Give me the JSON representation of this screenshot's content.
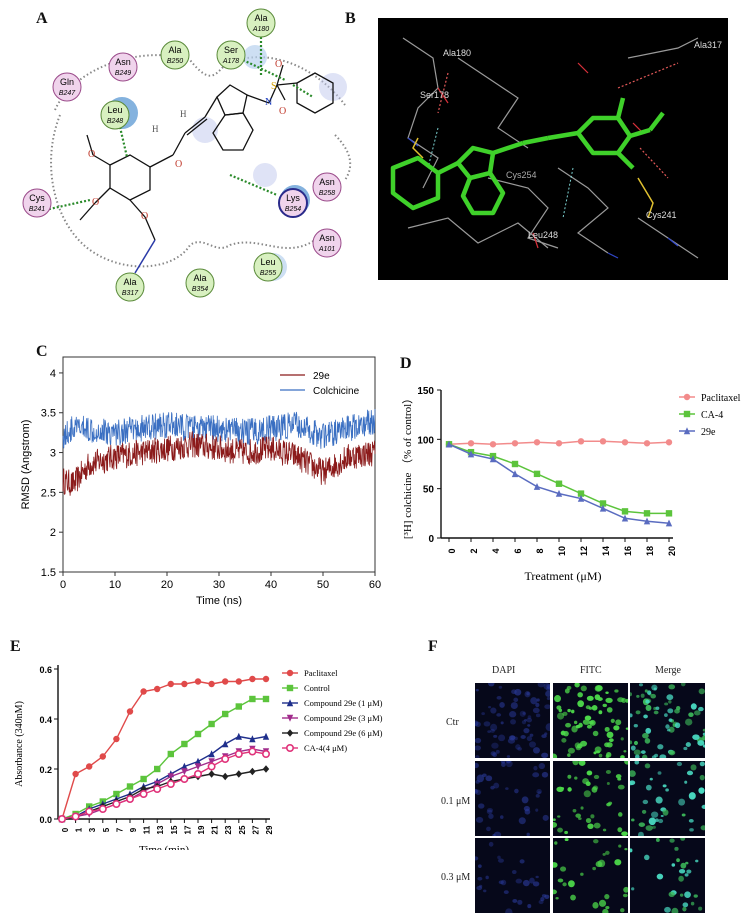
{
  "panels": {
    "a": {
      "letter": "A",
      "residues": [
        {
          "name": "Ala",
          "num": "A180",
          "color": "#d8f0c0"
        },
        {
          "name": "Ser",
          "num": "A178",
          "color": "#d8f0c0"
        },
        {
          "name": "Asn",
          "num": "B249",
          "color": "#f0d4ec"
        },
        {
          "name": "Ala",
          "num": "B250",
          "color": "#d8f0c0"
        },
        {
          "name": "Gln",
          "num": "B247",
          "color": "#f0d4ec"
        },
        {
          "name": "Leu",
          "num": "B248",
          "color": "#d8f0c0"
        },
        {
          "name": "Cys",
          "num": "B241",
          "color": "#f0d4ec"
        },
        {
          "name": "Asn",
          "num": "B258",
          "color": "#f0d4ec"
        },
        {
          "name": "Lys",
          "num": "B254",
          "color": "#f0d4ec"
        },
        {
          "name": "Asn",
          "num": "A101",
          "color": "#f0d4ec"
        },
        {
          "name": "Leu",
          "num": "B255",
          "color": "#d8f0c0"
        },
        {
          "name": "Ala",
          "num": "B317",
          "color": "#d8f0c0"
        },
        {
          "name": "Ala",
          "num": "B354",
          "color": "#d8f0c0"
        }
      ],
      "atoms": {
        "n": "N",
        "s": "S",
        "o": "O",
        "h": "H"
      }
    },
    "b": {
      "letter": "B",
      "labels": [
        "Ala180",
        "Ser178",
        "Ala317",
        "Cys254",
        "Leu248",
        "Cys241"
      ],
      "colors": {
        "ligand": "#3fd12a",
        "bg": "#000000"
      }
    },
    "c": {
      "letter": "C"
    },
    "d": {
      "letter": "D"
    },
    "e": {
      "letter": "E"
    },
    "f": {
      "letter": "F",
      "col_headers": [
        "DAPI",
        "FITC",
        "Merge"
      ],
      "row_labels": [
        "Ctr",
        "0.1 μM",
        "0.3 μM"
      ]
    }
  },
  "chart_data": [
    {
      "id": "C",
      "type": "line",
      "xlabel": "Time (ns)",
      "ylabel": "RMSD (Angstrom)",
      "xlim": [
        0,
        60
      ],
      "ylim": [
        1.5,
        4.2
      ],
      "xticks": [
        "0",
        "10",
        "20",
        "30",
        "40",
        "50",
        "60"
      ],
      "yticks": [
        "1.5",
        "2",
        "2.5",
        "3",
        "3.5",
        "4"
      ],
      "legend_position": "top-right",
      "series": [
        {
          "name": "29e",
          "color": "#8b1a1a",
          "x": [
            0,
            2,
            5,
            10,
            15,
            20,
            25,
            30,
            35,
            40,
            45,
            50,
            55,
            60
          ],
          "y": [
            2.65,
            2.6,
            2.85,
            2.95,
            3.0,
            3.05,
            3.1,
            3.05,
            3.0,
            3.05,
            2.95,
            2.75,
            2.95,
            3.0
          ]
        },
        {
          "name": "Colchicine",
          "color": "#3a6fc2",
          "x": [
            0,
            2,
            5,
            10,
            15,
            20,
            25,
            30,
            35,
            40,
            45,
            50,
            55,
            60
          ],
          "y": [
            3.2,
            3.3,
            3.3,
            3.25,
            3.3,
            3.35,
            3.3,
            3.3,
            3.25,
            3.3,
            3.35,
            3.2,
            3.3,
            3.4
          ]
        }
      ]
    },
    {
      "id": "D",
      "type": "line",
      "xlabel": "Treatment (μM)",
      "ylabel": "[³H] colchicine （% of control）",
      "xlim": [
        0,
        20
      ],
      "ylim": [
        0,
        150
      ],
      "xticks": [
        "0",
        "2",
        "4",
        "6",
        "8",
        "10",
        "12",
        "14",
        "16",
        "18",
        "20"
      ],
      "yticks": [
        "0",
        "50",
        "100",
        "150"
      ],
      "legend_position": "top-right",
      "series": [
        {
          "name": "Paclitaxel",
          "color": "#f28b8b",
          "marker": "circle",
          "x": [
            0,
            2,
            4,
            6,
            8,
            10,
            12,
            14,
            16,
            18,
            20
          ],
          "y": [
            95,
            96,
            95,
            96,
            97,
            96,
            98,
            98,
            97,
            96,
            97
          ]
        },
        {
          "name": "CA-4",
          "color": "#5cc43c",
          "marker": "square",
          "x": [
            0,
            2,
            4,
            6,
            8,
            10,
            12,
            14,
            16,
            18,
            20
          ],
          "y": [
            95,
            87,
            83,
            75,
            65,
            55,
            45,
            35,
            27,
            25,
            25
          ]
        },
        {
          "name": "29e",
          "color": "#5a6cc0",
          "marker": "triangle",
          "x": [
            0,
            2,
            4,
            6,
            8,
            10,
            12,
            14,
            16,
            18,
            20
          ],
          "y": [
            95,
            85,
            80,
            65,
            52,
            45,
            40,
            30,
            20,
            17,
            15
          ]
        }
      ]
    },
    {
      "id": "E",
      "type": "line",
      "xlabel": "Time (min)",
      "ylabel": "Absorbance (340nM)",
      "xlim": [
        0,
        29
      ],
      "ylim": [
        0,
        0.6
      ],
      "xticks": [
        "0",
        "1",
        "3",
        "5",
        "7",
        "9",
        "11",
        "13",
        "15",
        "17",
        "19",
        "21",
        "23",
        "25",
        "27",
        "29"
      ],
      "yticks": [
        "0.0",
        "0.2",
        "0.4",
        "0.6"
      ],
      "legend_position": "top-right",
      "series": [
        {
          "name": "Paclitaxel",
          "color": "#e04a4a",
          "marker": "circle",
          "y": [
            0.0,
            0.18,
            0.21,
            0.25,
            0.32,
            0.43,
            0.51,
            0.52,
            0.54,
            0.54,
            0.55,
            0.54,
            0.55,
            0.55,
            0.56,
            0.56
          ]
        },
        {
          "name": "Control",
          "color": "#5cc43c",
          "marker": "square",
          "y": [
            0.0,
            0.02,
            0.05,
            0.07,
            0.1,
            0.13,
            0.16,
            0.2,
            0.26,
            0.3,
            0.34,
            0.38,
            0.42,
            0.45,
            0.48,
            0.48
          ]
        },
        {
          "name": "Compound 29e (1 μM)",
          "color": "#1f2f8c",
          "marker": "triangle",
          "y": [
            0.0,
            0.01,
            0.04,
            0.06,
            0.08,
            0.1,
            0.13,
            0.15,
            0.18,
            0.21,
            0.23,
            0.26,
            0.3,
            0.33,
            0.32,
            0.33
          ]
        },
        {
          "name": "Compound 29e (3 μM)",
          "color": "#a12c8c",
          "marker": "triangle-down",
          "y": [
            0.0,
            0.01,
            0.02,
            0.04,
            0.06,
            0.08,
            0.11,
            0.14,
            0.17,
            0.19,
            0.21,
            0.23,
            0.25,
            0.27,
            0.28,
            0.27
          ]
        },
        {
          "name": "Compound 29e (6 μM)",
          "color": "#222222",
          "marker": "diamond",
          "y": [
            0.0,
            0.01,
            0.03,
            0.05,
            0.07,
            0.09,
            0.12,
            0.13,
            0.15,
            0.16,
            0.17,
            0.18,
            0.17,
            0.18,
            0.19,
            0.2
          ]
        },
        {
          "name": "CA-4(4 μM)",
          "color": "#e0337a",
          "marker": "circle-open",
          "y": [
            0.0,
            0.01,
            0.03,
            0.04,
            0.06,
            0.08,
            0.1,
            0.12,
            0.14,
            0.16,
            0.18,
            0.21,
            0.24,
            0.26,
            0.27,
            0.26
          ]
        }
      ]
    }
  ]
}
